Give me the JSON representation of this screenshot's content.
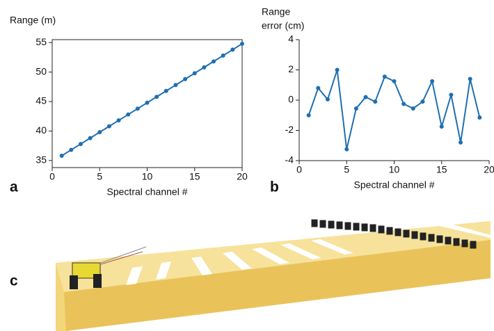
{
  "chart_data": [
    {
      "type": "line",
      "panel_label": "a",
      "ylabel": [
        "Range (m)"
      ],
      "xlabel": "Spectral channel #",
      "x": [
        1,
        2,
        3,
        4,
        5,
        6,
        7,
        8,
        9,
        10,
        11,
        12,
        13,
        14,
        15,
        16,
        17,
        18,
        19,
        20
      ],
      "series": [
        {
          "color": "#1f6fb0",
          "values": [
            35.8,
            36.8,
            37.8,
            38.8,
            39.8,
            40.8,
            41.8,
            42.8,
            43.8,
            44.8,
            45.8,
            46.8,
            47.8,
            48.8,
            49.8,
            50.8,
            51.8,
            52.8,
            53.8,
            54.8
          ]
        }
      ],
      "xlim": [
        0,
        20
      ],
      "ylim": [
        33.8,
        55.5
      ],
      "xticks": [
        0,
        5,
        10,
        15,
        20
      ],
      "yticks": [
        35,
        40,
        45,
        50,
        55
      ],
      "box": true
    },
    {
      "type": "line",
      "panel_label": "b",
      "ylabel": [
        "Range",
        "error (cm)"
      ],
      "xlabel": "Spectral channel #",
      "x": [
        1,
        2,
        3,
        4,
        5,
        6,
        7,
        8,
        9,
        10,
        11,
        12,
        13,
        14,
        15,
        16,
        17,
        18,
        19
      ],
      "series": [
        {
          "color": "#1f6fb0",
          "values": [
            -1.0,
            0.8,
            0.05,
            2.0,
            -3.25,
            -0.55,
            0.2,
            -0.1,
            1.55,
            1.25,
            -0.25,
            -0.55,
            -0.1,
            1.25,
            -1.75,
            0.35,
            -2.8,
            1.4,
            -1.15
          ]
        }
      ],
      "xlim": [
        0,
        20
      ],
      "ylim": [
        -4,
        4
      ],
      "xticks": [
        0,
        5,
        10,
        15,
        20
      ],
      "yticks": [
        -4,
        -2,
        0,
        2,
        4
      ],
      "box": false
    }
  ],
  "image_panel": {
    "label": "c"
  }
}
